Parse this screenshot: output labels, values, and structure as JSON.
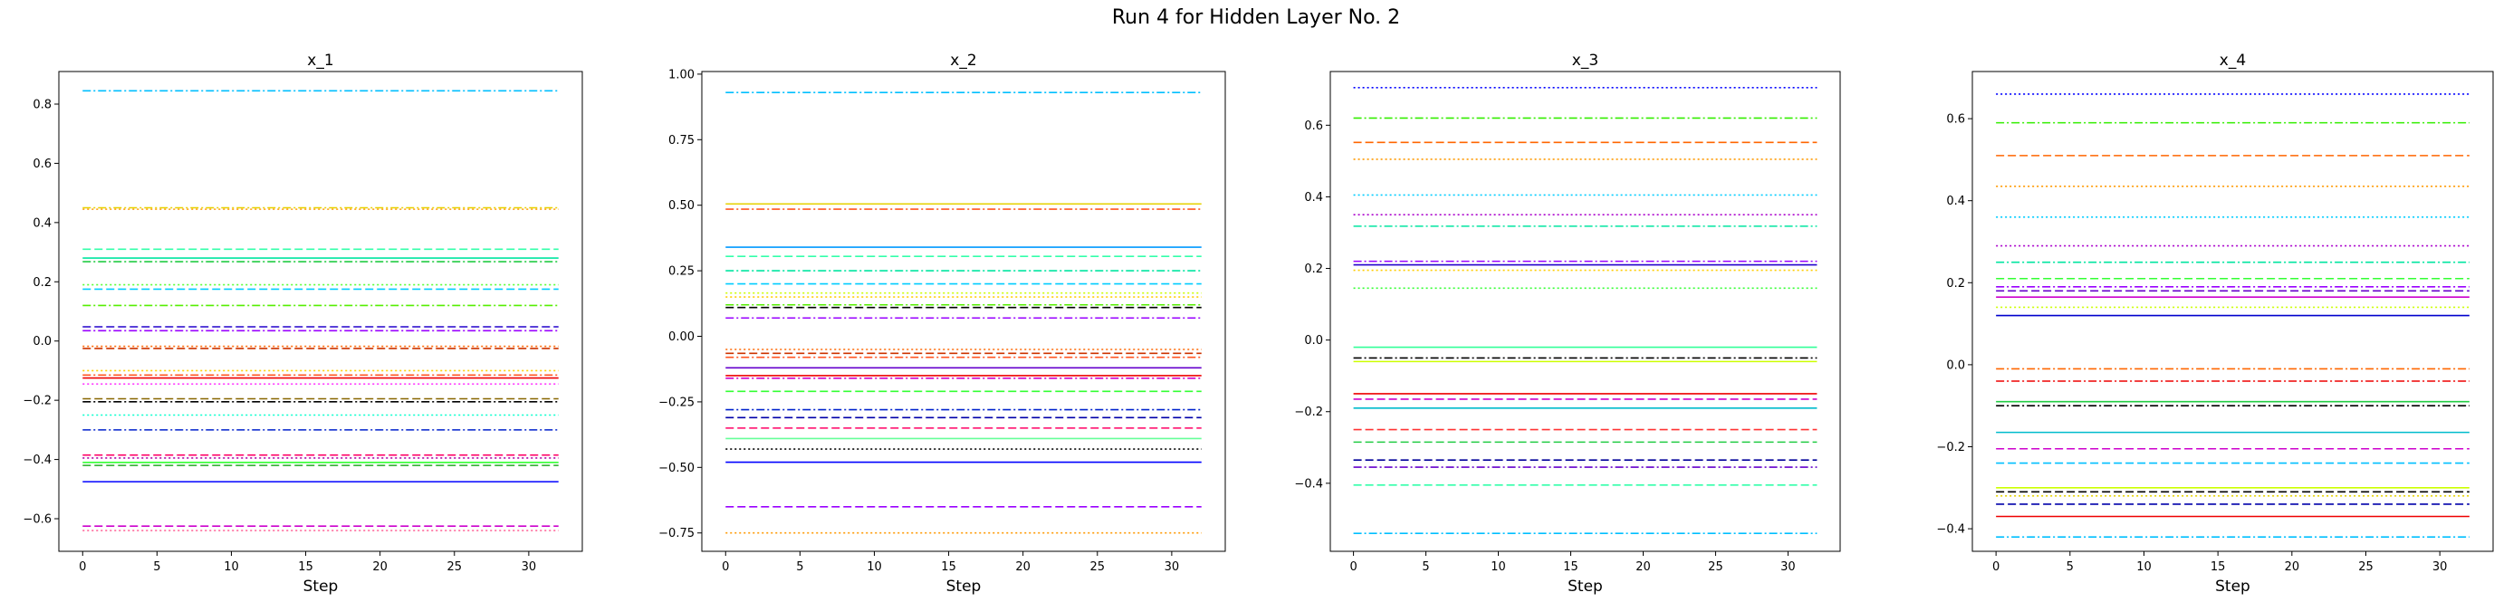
{
  "figure": {
    "title": "Run 4 for Hidden Layer No. 2"
  },
  "chart_data": [
    {
      "type": "line",
      "title": "x_1",
      "xlabel": "Step",
      "ylabel": "",
      "xlim": [
        -1.6,
        33.6
      ],
      "ylim": [
        -0.71,
        0.91
      ],
      "xticks": [
        0,
        5,
        10,
        15,
        20,
        25,
        30
      ],
      "yticks": [
        -0.6,
        -0.4,
        -0.2,
        0.0,
        0.2,
        0.4,
        0.6,
        0.8
      ],
      "ytick_labels": [
        "−0.6",
        "−0.4",
        "−0.2",
        "0.0",
        "0.2",
        "0.4",
        "0.6",
        "0.8"
      ],
      "x_range": [
        0,
        32
      ],
      "grid": false,
      "series": [
        {
          "value": 0.845,
          "color": "#00bfff",
          "dash": "dashdot"
        },
        {
          "value": 0.45,
          "color": "#e6d200",
          "dash": "dashdot"
        },
        {
          "value": 0.445,
          "color": "#ff9900",
          "dash": "dotted"
        },
        {
          "value": 0.31,
          "color": "#33ffaa",
          "dash": "dashed"
        },
        {
          "value": 0.28,
          "color": "#00e5a0",
          "dash": "solid"
        },
        {
          "value": 0.268,
          "color": "#22cc44",
          "dash": "dashdot"
        },
        {
          "value": 0.19,
          "color": "#55ff33",
          "dash": "dotted"
        },
        {
          "value": 0.175,
          "color": "#00ccff",
          "dash": "dashed"
        },
        {
          "value": 0.12,
          "color": "#55ee00",
          "dash": "dashdot"
        },
        {
          "value": 0.048,
          "color": "#2200cc",
          "dash": "dashed"
        },
        {
          "value": 0.035,
          "color": "#9900ff",
          "dash": "dashdot"
        },
        {
          "value": -0.018,
          "color": "#ff6600",
          "dash": "dotted"
        },
        {
          "value": -0.025,
          "color": "#cc3300",
          "dash": "dashed"
        },
        {
          "value": -0.1,
          "color": "#ffcc00",
          "dash": "dotted"
        },
        {
          "value": -0.115,
          "color": "#ff5522",
          "dash": "dashdot"
        },
        {
          "value": -0.125,
          "color": "#ee0000",
          "dash": "solid"
        },
        {
          "value": -0.145,
          "color": "#ff33ff",
          "dash": "dotted"
        },
        {
          "value": -0.195,
          "color": "#886600",
          "dash": "dashed"
        },
        {
          "value": -0.205,
          "color": "#000000",
          "dash": "dashdot"
        },
        {
          "value": -0.25,
          "color": "#00ffcc",
          "dash": "dotted"
        },
        {
          "value": -0.3,
          "color": "#0022cc",
          "dash": "dashdot"
        },
        {
          "value": -0.385,
          "color": "#ff0066",
          "dash": "dashed"
        },
        {
          "value": -0.395,
          "color": "#aa00aa",
          "dash": "dotted"
        },
        {
          "value": -0.41,
          "color": "#33ff33",
          "dash": "solid"
        },
        {
          "value": -0.42,
          "color": "#22aa22",
          "dash": "dashed"
        },
        {
          "value": -0.475,
          "color": "#0000ff",
          "dash": "solid"
        },
        {
          "value": -0.625,
          "color": "#cc00cc",
          "dash": "dashed"
        },
        {
          "value": -0.64,
          "color": "#ff6699",
          "dash": "dotted"
        }
      ]
    },
    {
      "type": "line",
      "title": "x_2",
      "xlabel": "Step",
      "ylabel": "",
      "xlim": [
        -1.6,
        33.6
      ],
      "ylim": [
        -0.82,
        1.01
      ],
      "xticks": [
        0,
        5,
        10,
        15,
        20,
        25,
        30
      ],
      "yticks": [
        -0.75,
        -0.5,
        -0.25,
        0.0,
        0.25,
        0.5,
        0.75,
        1.0
      ],
      "ytick_labels": [
        "−0.75",
        "−0.50",
        "−0.25",
        "0.00",
        "0.25",
        "0.50",
        "0.75",
        "1.00"
      ],
      "x_range": [
        0,
        32
      ],
      "grid": false,
      "series": [
        {
          "value": 0.93,
          "color": "#00bfff",
          "dash": "dashdot"
        },
        {
          "value": 0.505,
          "color": "#e6d200",
          "dash": "solid"
        },
        {
          "value": 0.485,
          "color": "#ff5522",
          "dash": "dashdot"
        },
        {
          "value": 0.34,
          "color": "#0099ff",
          "dash": "solid"
        },
        {
          "value": 0.305,
          "color": "#33ffaa",
          "dash": "dashed"
        },
        {
          "value": 0.25,
          "color": "#00e5a0",
          "dash": "dashdot"
        },
        {
          "value": 0.2,
          "color": "#00ccff",
          "dash": "dashed"
        },
        {
          "value": 0.165,
          "color": "#ccff00",
          "dash": "dotted"
        },
        {
          "value": 0.15,
          "color": "#ffcc00",
          "dash": "dotted"
        },
        {
          "value": 0.12,
          "color": "#55ee00",
          "dash": "dashdot"
        },
        {
          "value": 0.11,
          "color": "#000000",
          "dash": "dashed"
        },
        {
          "value": 0.07,
          "color": "#9900ff",
          "dash": "dashdot"
        },
        {
          "value": -0.05,
          "color": "#ff6600",
          "dash": "dotted"
        },
        {
          "value": -0.065,
          "color": "#cc3300",
          "dash": "dashed"
        },
        {
          "value": -0.08,
          "color": "#ff5522",
          "dash": "dashdot"
        },
        {
          "value": -0.12,
          "color": "#6600cc",
          "dash": "solid"
        },
        {
          "value": -0.15,
          "color": "#ee0000",
          "dash": "solid"
        },
        {
          "value": -0.16,
          "color": "#cc00cc",
          "dash": "dashdot"
        },
        {
          "value": -0.21,
          "color": "#33ff33",
          "dash": "dashed"
        },
        {
          "value": -0.28,
          "color": "#0022cc",
          "dash": "dashdot"
        },
        {
          "value": -0.31,
          "color": "#0000aa",
          "dash": "dashed"
        },
        {
          "value": -0.35,
          "color": "#ff0066",
          "dash": "dashed"
        },
        {
          "value": -0.39,
          "color": "#66ff99",
          "dash": "solid"
        },
        {
          "value": -0.43,
          "color": "#000000",
          "dash": "dotted"
        },
        {
          "value": -0.48,
          "color": "#0000ff",
          "dash": "solid"
        },
        {
          "value": -0.65,
          "color": "#9900ff",
          "dash": "dashed"
        },
        {
          "value": -0.75,
          "color": "#ff9900",
          "dash": "dotted"
        }
      ]
    },
    {
      "type": "line",
      "title": "x_3",
      "xlabel": "Step",
      "ylabel": "",
      "xlim": [
        -1.6,
        33.6
      ],
      "ylim": [
        -0.59,
        0.75
      ],
      "xticks": [
        0,
        5,
        10,
        15,
        20,
        25,
        30
      ],
      "yticks": [
        -0.4,
        -0.2,
        0.0,
        0.2,
        0.4,
        0.6
      ],
      "ytick_labels": [
        "−0.4",
        "−0.2",
        "0.0",
        "0.2",
        "0.4",
        "0.6"
      ],
      "x_range": [
        0,
        32
      ],
      "grid": false,
      "series": [
        {
          "value": 0.705,
          "color": "#0000ff",
          "dash": "dotted"
        },
        {
          "value": 0.62,
          "color": "#33ee00",
          "dash": "dashdot"
        },
        {
          "value": 0.552,
          "color": "#ff6600",
          "dash": "dashed"
        },
        {
          "value": 0.505,
          "color": "#ff9900",
          "dash": "dotted"
        },
        {
          "value": 0.405,
          "color": "#00ccff",
          "dash": "dotted"
        },
        {
          "value": 0.35,
          "color": "#aa00cc",
          "dash": "dotted"
        },
        {
          "value": 0.318,
          "color": "#00e5a0",
          "dash": "dashdot"
        },
        {
          "value": 0.22,
          "color": "#9900ff",
          "dash": "dashdot"
        },
        {
          "value": 0.21,
          "color": "#2200cc",
          "dash": "solid"
        },
        {
          "value": 0.195,
          "color": "#ffcc00",
          "dash": "dotted"
        },
        {
          "value": 0.145,
          "color": "#33ff33",
          "dash": "dotted"
        },
        {
          "value": -0.02,
          "color": "#33ff99",
          "dash": "solid"
        },
        {
          "value": -0.05,
          "color": "#000000",
          "dash": "dashdot"
        },
        {
          "value": -0.06,
          "color": "#ccff00",
          "dash": "solid"
        },
        {
          "value": -0.15,
          "color": "#ee0000",
          "dash": "solid"
        },
        {
          "value": -0.165,
          "color": "#cc00cc",
          "dash": "dashed"
        },
        {
          "value": -0.19,
          "color": "#00bbcc",
          "dash": "solid"
        },
        {
          "value": -0.25,
          "color": "#ff3333",
          "dash": "dashed"
        },
        {
          "value": -0.285,
          "color": "#22cc44",
          "dash": "dashed"
        },
        {
          "value": -0.335,
          "color": "#000099",
          "dash": "dashed"
        },
        {
          "value": -0.355,
          "color": "#6600cc",
          "dash": "dashdot"
        },
        {
          "value": -0.405,
          "color": "#33ffaa",
          "dash": "dashed"
        },
        {
          "value": -0.54,
          "color": "#00bfff",
          "dash": "dashdot"
        }
      ]
    },
    {
      "type": "line",
      "title": "x_4",
      "xlabel": "Step",
      "ylabel": "",
      "xlim": [
        -1.6,
        33.6
      ],
      "ylim": [
        -0.455,
        0.715
      ],
      "xticks": [
        0,
        5,
        10,
        15,
        20,
        25,
        30
      ],
      "yticks": [
        -0.4,
        -0.2,
        0.0,
        0.2,
        0.4,
        0.6
      ],
      "ytick_labels": [
        "−0.4",
        "−0.2",
        "0.0",
        "0.2",
        "0.4",
        "0.6"
      ],
      "x_range": [
        0,
        32
      ],
      "grid": false,
      "series": [
        {
          "value": 0.66,
          "color": "#0000ff",
          "dash": "dotted"
        },
        {
          "value": 0.59,
          "color": "#33ee00",
          "dash": "dashdot"
        },
        {
          "value": 0.51,
          "color": "#ff6600",
          "dash": "dashed"
        },
        {
          "value": 0.435,
          "color": "#ff9900",
          "dash": "dotted"
        },
        {
          "value": 0.36,
          "color": "#00ccff",
          "dash": "dotted"
        },
        {
          "value": 0.29,
          "color": "#aa00cc",
          "dash": "dotted"
        },
        {
          "value": 0.25,
          "color": "#00e5a0",
          "dash": "dashdot"
        },
        {
          "value": 0.21,
          "color": "#33ff33",
          "dash": "dashed"
        },
        {
          "value": 0.19,
          "color": "#9900ff",
          "dash": "dashdot"
        },
        {
          "value": 0.18,
          "color": "#6600cc",
          "dash": "dashed"
        },
        {
          "value": 0.165,
          "color": "#cc00cc",
          "dash": "solid"
        },
        {
          "value": 0.14,
          "color": "#ccff00",
          "dash": "dotted"
        },
        {
          "value": 0.12,
          "color": "#0000cc",
          "dash": "solid"
        },
        {
          "value": -0.01,
          "color": "#ff6600",
          "dash": "dashdot"
        },
        {
          "value": -0.04,
          "color": "#ee0000",
          "dash": "dashdot"
        },
        {
          "value": -0.09,
          "color": "#22cc44",
          "dash": "solid"
        },
        {
          "value": -0.1,
          "color": "#000000",
          "dash": "dashdot"
        },
        {
          "value": -0.165,
          "color": "#00bbcc",
          "dash": "solid"
        },
        {
          "value": -0.205,
          "color": "#cc00cc",
          "dash": "dashed"
        },
        {
          "value": -0.24,
          "color": "#00bfff",
          "dash": "dashed"
        },
        {
          "value": -0.3,
          "color": "#ccff00",
          "dash": "solid"
        },
        {
          "value": -0.31,
          "color": "#000000",
          "dash": "dashed"
        },
        {
          "value": -0.32,
          "color": "#e6d200",
          "dash": "dotted"
        },
        {
          "value": -0.34,
          "color": "#0000aa",
          "dash": "dashed"
        },
        {
          "value": -0.37,
          "color": "#ee0000",
          "dash": "solid"
        },
        {
          "value": -0.42,
          "color": "#00bfff",
          "dash": "dashdot"
        }
      ]
    }
  ]
}
